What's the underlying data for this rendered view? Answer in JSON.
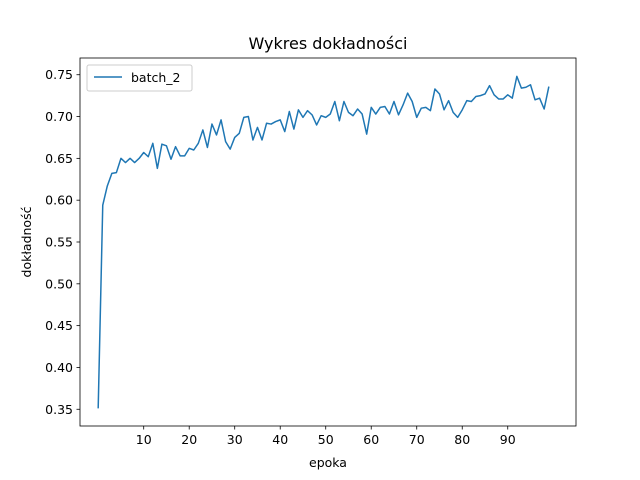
{
  "chart_data": {
    "type": "line",
    "title": "Wykres dokładności",
    "xlabel": "epoka",
    "ylabel": "dokładność",
    "xlim": [
      -4,
      105
    ],
    "ylim": [
      0.33,
      0.77
    ],
    "xticks": [
      10,
      20,
      30,
      40,
      50,
      60,
      70,
      80,
      90
    ],
    "yticks": [
      0.35,
      0.4,
      0.45,
      0.5,
      0.55,
      0.6,
      0.65,
      0.7,
      0.75
    ],
    "ytick_labels": [
      "0.35",
      "0.40",
      "0.45",
      "0.50",
      "0.55",
      "0.60",
      "0.65",
      "0.70",
      "0.75"
    ],
    "grid": false,
    "legend": {
      "position": "top-left",
      "entries": [
        "batch_2"
      ]
    },
    "colors": {
      "series": "#1f77b4",
      "axes": "#000000",
      "legend_border": "#cccccc"
    },
    "series": [
      {
        "name": "batch_2",
        "x": [
          0,
          1,
          2,
          3,
          4,
          5,
          6,
          7,
          8,
          9,
          10,
          11,
          12,
          13,
          14,
          15,
          16,
          17,
          18,
          19,
          20,
          21,
          22,
          23,
          24,
          25,
          26,
          27,
          28,
          29,
          30,
          31,
          32,
          33,
          34,
          35,
          36,
          37,
          38,
          39,
          40,
          41,
          42,
          43,
          44,
          45,
          46,
          47,
          48,
          49,
          50,
          51,
          52,
          53,
          54,
          55,
          56,
          57,
          58,
          59,
          60,
          61,
          62,
          63,
          64,
          65,
          66,
          67,
          68,
          69,
          70,
          71,
          72,
          73,
          74,
          75,
          76,
          77,
          78,
          79,
          80,
          81,
          82,
          83,
          84,
          85,
          86,
          87,
          88,
          89,
          90,
          91,
          92,
          93,
          94,
          95,
          96,
          97,
          98,
          99
        ],
        "values": [
          0.352,
          0.594,
          0.617,
          0.632,
          0.633,
          0.65,
          0.645,
          0.65,
          0.645,
          0.65,
          0.657,
          0.652,
          0.668,
          0.638,
          0.667,
          0.665,
          0.649,
          0.664,
          0.653,
          0.653,
          0.662,
          0.66,
          0.668,
          0.684,
          0.663,
          0.691,
          0.678,
          0.696,
          0.67,
          0.661,
          0.675,
          0.68,
          0.699,
          0.7,
          0.672,
          0.687,
          0.672,
          0.692,
          0.691,
          0.694,
          0.696,
          0.682,
          0.706,
          0.685,
          0.708,
          0.699,
          0.707,
          0.702,
          0.69,
          0.701,
          0.699,
          0.703,
          0.718,
          0.695,
          0.718,
          0.705,
          0.701,
          0.709,
          0.703,
          0.679,
          0.711,
          0.703,
          0.711,
          0.712,
          0.703,
          0.718,
          0.702,
          0.714,
          0.728,
          0.718,
          0.699,
          0.71,
          0.711,
          0.707,
          0.733,
          0.727,
          0.708,
          0.719,
          0.705,
          0.699,
          0.708,
          0.719,
          0.718,
          0.724,
          0.725,
          0.727,
          0.737,
          0.726,
          0.721,
          0.721,
          0.726,
          0.722,
          0.748,
          0.734,
          0.735,
          0.738,
          0.72,
          0.722,
          0.709,
          0.735
        ]
      }
    ]
  }
}
